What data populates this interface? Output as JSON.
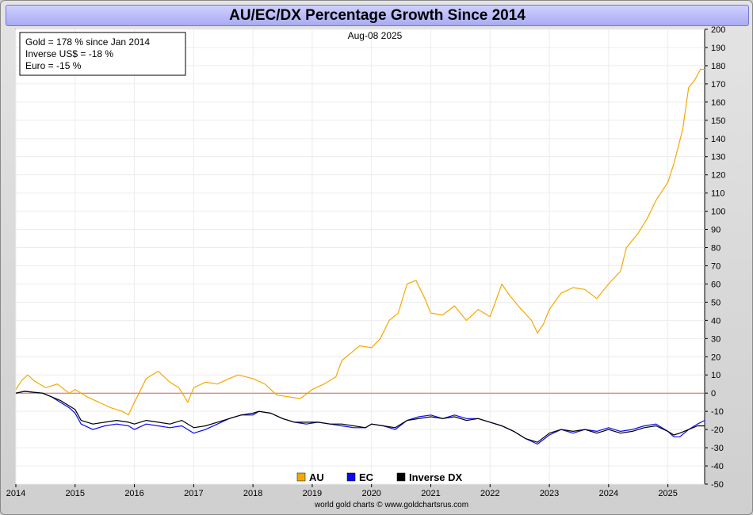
{
  "chart_data": {
    "type": "line",
    "title": "AU/EC/DX Percentage Growth Since 2014",
    "date_label": "Aug-08  2025",
    "info_box": [
      "Gold = 178 % since Jan 2014",
      "Inverse US$ = -18 %",
      "Euro = -15 %"
    ],
    "credit": "world gold charts © www.goldchartsrus.com",
    "x_ticks": [
      "2014",
      "2015",
      "2016",
      "2017",
      "2018",
      "2019",
      "2020",
      "2021",
      "2022",
      "2023",
      "2024",
      "2025"
    ],
    "xlim": [
      2014.0,
      2025.62
    ],
    "ylim": [
      -50,
      200
    ],
    "y_ticks": [
      -50,
      -40,
      -30,
      -20,
      -10,
      0,
      10,
      20,
      30,
      40,
      50,
      60,
      70,
      80,
      90,
      100,
      110,
      120,
      130,
      140,
      150,
      160,
      170,
      180,
      190,
      200
    ],
    "zero_line": 0,
    "colors": {
      "AU": "#f5a800",
      "EC": "#0a0af0",
      "Inverse DX": "#000000",
      "zero": "#e86060"
    },
    "series": [
      {
        "name": "AU",
        "color": "#f5a800",
        "x": [
          2014.0,
          2014.1,
          2014.2,
          2014.3,
          2014.5,
          2014.7,
          2014.9,
          2015.0,
          2015.2,
          2015.4,
          2015.6,
          2015.8,
          2015.9,
          2016.0,
          2016.2,
          2016.4,
          2016.6,
          2016.75,
          2016.9,
          2017.0,
          2017.2,
          2017.4,
          2017.6,
          2017.75,
          2018.0,
          2018.2,
          2018.4,
          2018.6,
          2018.8,
          2019.0,
          2019.2,
          2019.4,
          2019.5,
          2019.65,
          2019.8,
          2020.0,
          2020.15,
          2020.3,
          2020.45,
          2020.6,
          2020.75,
          2020.9,
          2021.0,
          2021.2,
          2021.4,
          2021.6,
          2021.8,
          2022.0,
          2022.2,
          2022.3,
          2022.5,
          2022.7,
          2022.8,
          2022.9,
          2023.0,
          2023.2,
          2023.4,
          2023.6,
          2023.8,
          2024.0,
          2024.2,
          2024.3,
          2024.5,
          2024.65,
          2024.8,
          2025.0,
          2025.1,
          2025.25,
          2025.35,
          2025.45,
          2025.55,
          2025.62
        ],
        "y": [
          2,
          7,
          10,
          7,
          3,
          5,
          0,
          2,
          -2,
          -5,
          -8,
          -10,
          -12,
          -5,
          8,
          12,
          6,
          3,
          -5,
          3,
          6,
          5,
          8,
          10,
          8,
          5,
          -1,
          -2,
          -3,
          2,
          5,
          9,
          18,
          22,
          26,
          25,
          30,
          40,
          44,
          60,
          62,
          52,
          44,
          43,
          48,
          40,
          46,
          42,
          60,
          55,
          47,
          40,
          33,
          38,
          46,
          55,
          58,
          57,
          52,
          60,
          67,
          80,
          88,
          96,
          106,
          116,
          126,
          145,
          168,
          172,
          178,
          178
        ]
      },
      {
        "name": "EC",
        "color": "#0a0af0",
        "x": [
          2014.0,
          2014.15,
          2014.3,
          2014.45,
          2014.6,
          2014.75,
          2014.9,
          2015.0,
          2015.1,
          2015.3,
          2015.5,
          2015.7,
          2015.9,
          2016.0,
          2016.2,
          2016.4,
          2016.6,
          2016.8,
          2017.0,
          2017.2,
          2017.4,
          2017.6,
          2017.8,
          2018.0,
          2018.1,
          2018.3,
          2018.5,
          2018.7,
          2018.9,
          2019.1,
          2019.3,
          2019.5,
          2019.7,
          2019.9,
          2020.0,
          2020.2,
          2020.4,
          2020.6,
          2020.8,
          2021.0,
          2021.2,
          2021.4,
          2021.6,
          2021.8,
          2022.0,
          2022.2,
          2022.4,
          2022.6,
          2022.8,
          2023.0,
          2023.2,
          2023.4,
          2023.6,
          2023.8,
          2024.0,
          2024.2,
          2024.4,
          2024.6,
          2024.8,
          2025.0,
          2025.1,
          2025.2,
          2025.35,
          2025.5,
          2025.62
        ],
        "y": [
          0,
          1,
          0.5,
          0,
          -2,
          -5,
          -8,
          -11,
          -17,
          -20,
          -18,
          -17,
          -18,
          -20,
          -17,
          -18,
          -19,
          -18,
          -22,
          -20,
          -17,
          -14,
          -12,
          -12,
          -10,
          -11,
          -14,
          -16,
          -17,
          -16,
          -17,
          -18,
          -19,
          -19,
          -17,
          -18,
          -20,
          -15,
          -13,
          -12,
          -14,
          -12,
          -14,
          -14,
          -16,
          -18,
          -21,
          -25,
          -28,
          -23,
          -20,
          -22,
          -20,
          -21,
          -19,
          -21,
          -20,
          -18,
          -17,
          -21,
          -24,
          -24,
          -20,
          -17,
          -15
        ]
      },
      {
        "name": "Inverse DX",
        "color": "#000000",
        "x": [
          2014.0,
          2014.15,
          2014.3,
          2014.45,
          2014.6,
          2014.75,
          2014.9,
          2015.0,
          2015.1,
          2015.3,
          2015.5,
          2015.7,
          2015.9,
          2016.0,
          2016.2,
          2016.4,
          2016.6,
          2016.8,
          2017.0,
          2017.2,
          2017.4,
          2017.6,
          2017.8,
          2018.0,
          2018.1,
          2018.3,
          2018.5,
          2018.7,
          2018.9,
          2019.1,
          2019.3,
          2019.5,
          2019.7,
          2019.9,
          2020.0,
          2020.2,
          2020.4,
          2020.6,
          2020.8,
          2021.0,
          2021.2,
          2021.4,
          2021.6,
          2021.8,
          2022.0,
          2022.2,
          2022.4,
          2022.6,
          2022.8,
          2023.0,
          2023.2,
          2023.4,
          2023.6,
          2023.8,
          2024.0,
          2024.2,
          2024.4,
          2024.6,
          2024.8,
          2025.0,
          2025.1,
          2025.2,
          2025.35,
          2025.5,
          2025.62
        ],
        "y": [
          0,
          1,
          0.5,
          0,
          -2,
          -4,
          -7,
          -9,
          -15,
          -17,
          -16,
          -15,
          -16,
          -17,
          -15,
          -16,
          -17,
          -15,
          -19,
          -18,
          -16,
          -14,
          -12,
          -11,
          -10,
          -11,
          -14,
          -16,
          -16,
          -16,
          -17,
          -17,
          -18,
          -19,
          -17,
          -18,
          -19,
          -15,
          -14,
          -13,
          -14,
          -13,
          -15,
          -14,
          -16,
          -18,
          -21,
          -25,
          -27,
          -22,
          -20,
          -21,
          -20,
          -22,
          -20,
          -22,
          -21,
          -19,
          -18,
          -21,
          -23,
          -22,
          -20,
          -18,
          -18
        ]
      }
    ]
  }
}
